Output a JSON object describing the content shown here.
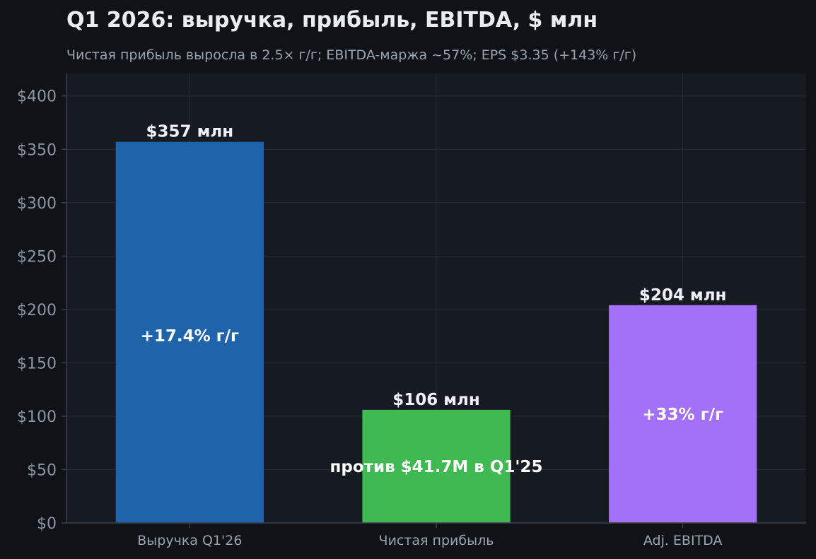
{
  "chart_data": {
    "type": "bar",
    "title": "Q1 2026: выручка, прибыль, EBITDA, $ млн",
    "subtitle": "Чистая прибыль выросла в 2.5× г/г; EBITDA-маржа ~57%; EPS $3.35 (+143% г/г)",
    "xlabel": "",
    "ylabel": "",
    "categories": [
      "Выручка Q1'26",
      "Чистая прибыль",
      "Adj. EBITDA"
    ],
    "values": [
      357,
      106,
      204
    ],
    "value_labels": [
      "$357 млн",
      "$106 млн",
      "$204 млн"
    ],
    "inner_labels": [
      "+17.4% г/г",
      "против $41.7M в Q1'25",
      "+33% г/г"
    ],
    "inner_label_values": [
      175.3,
      53,
      102
    ],
    "bar_colors": [
      "#1f63ab",
      "#40b953",
      "#a371f7"
    ],
    "ylim": [
      0,
      421
    ],
    "yticks": [
      0,
      50,
      100,
      150,
      200,
      250,
      300,
      350,
      400
    ],
    "ytick_labels": [
      "$0",
      "$50",
      "$100",
      "$150",
      "$200",
      "$250",
      "$300",
      "$350",
      "$400"
    ],
    "grid": true,
    "legend": "none",
    "colors": {
      "background": "#0f1317",
      "plot_background": "#161a21",
      "grid": "#262c35",
      "axis": "#3a414b"
    }
  }
}
